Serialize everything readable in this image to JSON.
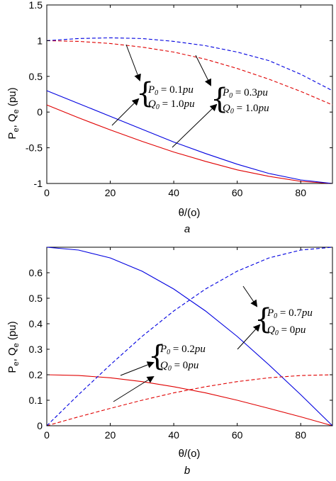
{
  "chart_data": [
    {
      "type": "line",
      "panel_label": "a",
      "xlabel": "θ/(o)",
      "ylabel": "P",
      "ylabel_sub_p": "e",
      "ylabel_mid": ", Q",
      "ylabel_sub_q": "e",
      "ylabel_tail": " (pu)",
      "xlim": [
        0,
        90
      ],
      "ylim": [
        -1,
        1.5
      ],
      "xticks": [
        "0",
        "20",
        "40",
        "60",
        "80"
      ],
      "yticks": [
        "-1",
        "-0.5",
        "0",
        "0.5",
        "1",
        "1.5"
      ],
      "grid": false,
      "x": [
        0,
        10,
        20,
        30,
        40,
        50,
        60,
        70,
        80,
        90
      ],
      "series": [
        {
          "style": "solid",
          "color": "#e00000",
          "values": [
            0.1,
            -0.08,
            -0.25,
            -0.41,
            -0.56,
            -0.69,
            -0.81,
            -0.9,
            -0.97,
            -1.0
          ]
        },
        {
          "style": "solid",
          "color": "#0000e0",
          "values": [
            0.3,
            0.12,
            -0.06,
            -0.24,
            -0.42,
            -0.58,
            -0.73,
            -0.86,
            -0.95,
            -1.0
          ]
        },
        {
          "style": "dashed",
          "color": "#e00000",
          "values": [
            1.0,
            0.99,
            0.96,
            0.91,
            0.84,
            0.74,
            0.61,
            0.46,
            0.29,
            0.1
          ]
        },
        {
          "style": "dashed",
          "color": "#0000e0",
          "values": [
            1.0,
            1.03,
            1.04,
            1.03,
            0.99,
            0.93,
            0.84,
            0.72,
            0.53,
            0.3
          ]
        }
      ],
      "annotations": [
        {
          "p_label": "P",
          "p_sub": "0",
          "p_rhs": " = 0.1",
          "p_unit": "pu",
          "q_label": "Q",
          "q_sub": "0",
          "q_rhs": " = 1.0",
          "q_unit": "pu"
        },
        {
          "p_label": "P",
          "p_sub": "0",
          "p_rhs": " = 0.3",
          "p_unit": "pu",
          "q_label": "Q",
          "q_sub": "0",
          "q_rhs": " = 1.0",
          "q_unit": "pu"
        }
      ]
    },
    {
      "type": "line",
      "panel_label": "b",
      "xlabel": "θ/(o)",
      "ylabel": "P",
      "ylabel_sub_p": "e",
      "ylabel_mid": ", Q",
      "ylabel_sub_q": "e",
      "ylabel_tail": " (pu)",
      "xlim": [
        0,
        90
      ],
      "ylim": [
        0,
        0.7
      ],
      "xticks": [
        "0",
        "20",
        "40",
        "60",
        "80"
      ],
      "yticks": [
        "0",
        "0.1",
        "0.2",
        "0.3",
        "0.4",
        "0.5",
        "0.6"
      ],
      "grid": false,
      "x": [
        0,
        10,
        20,
        30,
        40,
        50,
        60,
        70,
        80,
        90
      ],
      "series": [
        {
          "style": "solid",
          "color": "#e00000",
          "values": [
            0.2,
            0.197,
            0.188,
            0.173,
            0.153,
            0.129,
            0.1,
            0.068,
            0.035,
            0.0
          ]
        },
        {
          "style": "solid",
          "color": "#0000e0",
          "values": [
            0.7,
            0.689,
            0.658,
            0.606,
            0.536,
            0.45,
            0.35,
            0.239,
            0.122,
            0.0
          ]
        },
        {
          "style": "dashed",
          "color": "#e00000",
          "values": [
            0.0,
            0.035,
            0.068,
            0.1,
            0.129,
            0.153,
            0.173,
            0.188,
            0.197,
            0.2
          ]
        },
        {
          "style": "dashed",
          "color": "#0000e0",
          "values": [
            0.0,
            0.122,
            0.239,
            0.35,
            0.45,
            0.536,
            0.606,
            0.658,
            0.689,
            0.7
          ]
        }
      ],
      "annotations": [
        {
          "p_label": "P",
          "p_sub": "0",
          "p_rhs": " = 0.2",
          "p_unit": "pu",
          "q_label": "Q",
          "q_sub": "0",
          "q_rhs": " = 0",
          "q_unit": "pu"
        },
        {
          "p_label": "P",
          "p_sub": "0",
          "p_rhs": " = 0.7",
          "p_unit": "pu",
          "q_label": "Q",
          "q_sub": "0",
          "q_rhs": " = 0",
          "q_unit": "pu"
        }
      ]
    }
  ]
}
